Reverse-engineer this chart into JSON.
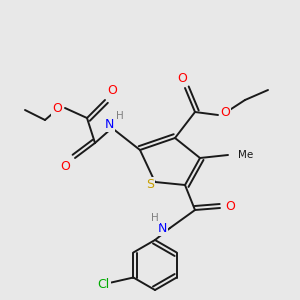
{
  "bg_color": "#e8e8e8",
  "bond_color": "#1a1a1a",
  "atom_colors": {
    "O": "#ff0000",
    "N": "#0000ff",
    "S": "#c8a000",
    "Cl": "#00aa00",
    "H": "#808080",
    "C": "#1a1a1a"
  }
}
